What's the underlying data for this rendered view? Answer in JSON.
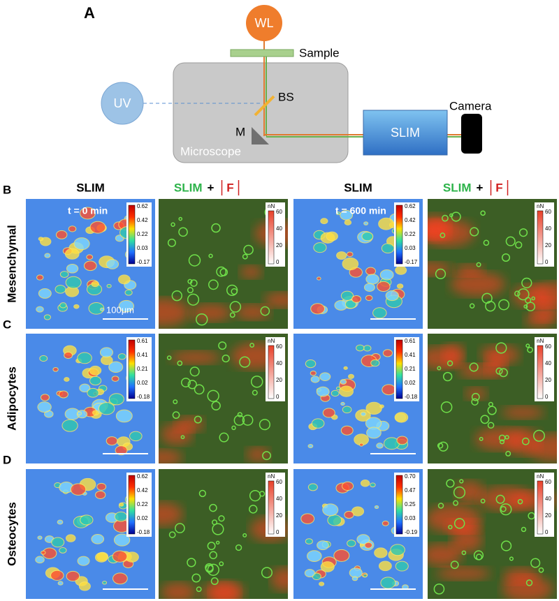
{
  "panel_a": {
    "label": "A",
    "nodes": {
      "wl": "WL",
      "sample": "Sample",
      "uv": "UV",
      "bs": "BS",
      "m": "M",
      "microscope": "Microscope",
      "slim": "SLIM",
      "camera": "Camera"
    }
  },
  "column_headers": [
    {
      "slim": "SLIM"
    },
    {
      "slim": "SLIM",
      "plus": "+",
      "force": "F"
    },
    {
      "slim": "SLIM"
    },
    {
      "slim": "SLIM",
      "plus": "+",
      "force": "F"
    }
  ],
  "time_labels": [
    "t = 0 min",
    "t = 600 min"
  ],
  "scale_bar": "100μm",
  "force_colorbar": {
    "unit": "nN",
    "ticks": [
      "60",
      "40",
      "20",
      "0"
    ]
  },
  "rows": [
    {
      "letter": "B",
      "label": "Mesenchymal",
      "slim_colorbars": [
        [
          "0.62",
          "0.42",
          "0.22",
          "0.03",
          "-0.17"
        ],
        [
          "0.62",
          "0.42",
          "0.22",
          "0.03",
          "-0.17"
        ]
      ]
    },
    {
      "letter": "C",
      "label": "Adipocytes",
      "slim_colorbars": [
        [
          "0.61",
          "0.41",
          "0.21",
          "0.02",
          "-0.18"
        ],
        [
          "0.61",
          "0.41",
          "0.21",
          "0.02",
          "-0.18"
        ]
      ]
    },
    {
      "letter": "D",
      "label": "Osteocytes",
      "slim_colorbars": [
        [
          "0.62",
          "0.42",
          "0.22",
          "0.02",
          "-0.18"
        ],
        [
          "0.70",
          "0.47",
          "0.25",
          "0.03",
          "-0.19"
        ]
      ]
    }
  ]
}
